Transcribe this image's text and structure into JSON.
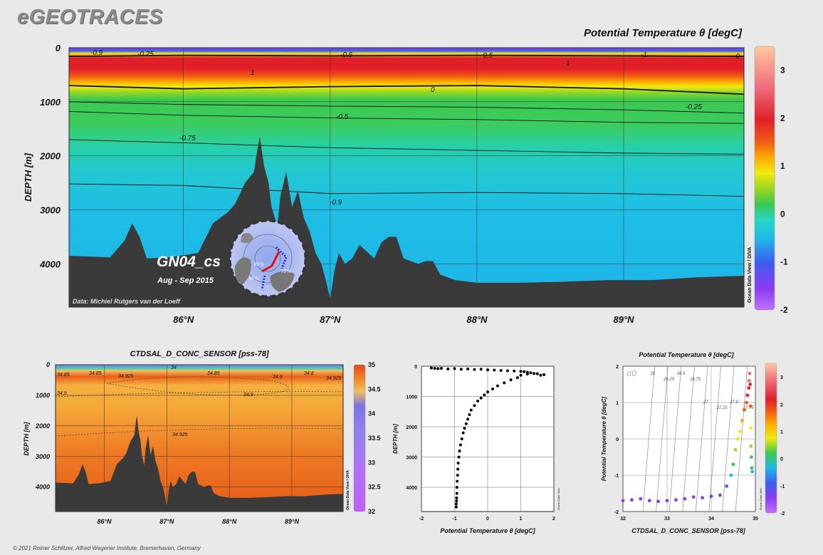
{
  "brand": "eGEOTRACES",
  "footer": "© 2021 Reiner Schlitzer, Alfred Wegener Institute, Bremerhaven, Germany",
  "main_section": {
    "title": "Potential Temperature θ [degC]",
    "ylabel": "DEPTH [m]",
    "section_name": "GN04_cs",
    "dates": "Aug - Sep 2015",
    "credit": "Data: Michiel Rutgers van der Loeff",
    "odv_label": "Ocean Data View / DIVA",
    "y_ticks": [
      "0",
      "1000",
      "2000",
      "3000",
      "4000"
    ],
    "x_ticks": [
      "86°N",
      "87°N",
      "88°N",
      "89°N"
    ],
    "colorbar_ticks": [
      "3",
      "2",
      "1",
      "0",
      "-1",
      "-2"
    ],
    "contour_labels": [
      "-0.9",
      "-0.25",
      "-0.5",
      "-0.5",
      "-1",
      "1",
      "1",
      "0",
      "0",
      "-0.25",
      "-0.5",
      "-0.75",
      "-0.9",
      "-0"
    ],
    "inset_labels": [
      "85°N",
      "80°N",
      "75°N"
    ]
  },
  "salinity_section": {
    "title": "CTDSAL_D_CONC_SENSOR [pss-78]",
    "ylabel": "DEPTH [m]",
    "odv_label": "Ocean Data View / DIVA",
    "y_ticks": [
      "0",
      "1000",
      "2000",
      "3000",
      "4000"
    ],
    "x_ticks": [
      "86°N",
      "87°N",
      "88°N",
      "89°N"
    ],
    "colorbar_ticks": [
      "35",
      "34.5",
      "34",
      "33.5",
      "33",
      "32.5",
      "32"
    ],
    "contour_labels": [
      "34.85",
      "34.85",
      "34.925",
      "34.85",
      "34.9",
      "34.8",
      "34.925",
      "34.9",
      "34.9",
      "34.925",
      "34"
    ]
  },
  "colors": {
    "background": "#e9e9e9",
    "bathymetry": "#3a3a3a",
    "theta_scale": [
      "#8a3cf0",
      "#3e5cf0",
      "#1fb8e8",
      "#27d7c8",
      "#3cc850",
      "#9ad820",
      "#f2ea10",
      "#ffa800",
      "#f05a14",
      "#e02028",
      "#f06a7a",
      "#ffc8a0"
    ],
    "salinity_scale": [
      "#c060ff",
      "#a070f0",
      "#7080f0",
      "#9080e0",
      "#c0a0c0",
      "#f0c060",
      "#f4b040",
      "#f08a28",
      "#e8601a",
      "#e24818"
    ]
  },
  "chart_data": [
    {
      "type": "heatmap",
      "title": "Potential Temperature θ [degC]",
      "xlabel": "",
      "ylabel": "DEPTH [m]",
      "xlim": [
        85.22,
        89.82
      ],
      "ylim": [
        4800,
        0
      ],
      "zlim": [
        -2,
        3.5
      ],
      "x_ticks": [
        86,
        87,
        88,
        89
      ],
      "y_ticks": [
        0,
        1000,
        2000,
        3000,
        4000
      ],
      "colorbar_ticks": [
        3,
        2,
        1,
        0,
        -1,
        -2
      ],
      "bathymetry": {
        "x": [
          85.22,
          85.5,
          85.6,
          85.65,
          85.7,
          85.75,
          85.9,
          86.1,
          86.2,
          86.3,
          86.35,
          86.42,
          86.48,
          86.5,
          86.52,
          86.55,
          86.58,
          86.6,
          86.64,
          86.66,
          86.7,
          86.74,
          86.78,
          86.82,
          86.86,
          86.9,
          86.94,
          86.97,
          87.0,
          87.03,
          87.06,
          87.1,
          87.15,
          87.2,
          87.3,
          87.35,
          87.4,
          87.45,
          87.5,
          87.6,
          87.65,
          87.7,
          87.75,
          87.85,
          88.0,
          88.3,
          88.6,
          88.9,
          89.2,
          89.5,
          89.82
        ],
        "y": [
          3850,
          3880,
          3560,
          3250,
          3500,
          3900,
          3880,
          3800,
          3250,
          3050,
          2900,
          2500,
          2300,
          1950,
          1650,
          2200,
          2500,
          2950,
          3300,
          2750,
          2300,
          2950,
          2650,
          3150,
          3400,
          3800,
          4000,
          4300,
          4650,
          4100,
          3800,
          4000,
          3900,
          3650,
          3900,
          3600,
          3500,
          3500,
          3900,
          4000,
          3950,
          3950,
          4200,
          4300,
          4350,
          4350,
          4330,
          4300,
          4300,
          4250,
          4220
        ]
      },
      "contours": [
        {
          "level": "1",
          "depth": [
            160,
            140,
            150,
            140,
            150,
            160
          ]
        },
        {
          "level": "0",
          "depth": [
            700,
            760,
            720,
            700,
            760,
            860
          ]
        },
        {
          "level": "-0.25",
          "depth": [
            1000,
            1050,
            1080,
            1100,
            1150,
            1210
          ]
        },
        {
          "level": "-0.5",
          "depth": [
            1180,
            1250,
            1300,
            1330,
            1380,
            1400
          ]
        },
        {
          "level": "-0.75",
          "depth": [
            1700,
            1760,
            1850,
            1900,
            1950,
            1970
          ]
        },
        {
          "level": "-0.9",
          "depth": [
            2520,
            2550,
            2700,
            2680,
            2700,
            2750
          ]
        }
      ],
      "contour_x": [
        85.22,
        86.0,
        87.0,
        88.0,
        89.0,
        89.82
      ]
    },
    {
      "type": "heatmap",
      "title": "CTDSAL_D_CONC_SENSOR [pss-78]",
      "xlabel": "",
      "ylabel": "DEPTH [m]",
      "xlim": [
        85.22,
        89.82
      ],
      "ylim": [
        4800,
        0
      ],
      "zlim": [
        32,
        35
      ],
      "x_ticks": [
        86,
        87,
        88,
        89
      ],
      "y_ticks": [
        0,
        1000,
        2000,
        3000,
        4000
      ],
      "colorbar_ticks": [
        35,
        34.5,
        34,
        33.5,
        33,
        32.5,
        32
      ]
    },
    {
      "type": "scatter",
      "xlabel": "Potential Temperature θ [degC]",
      "ylabel": "DEPTH [m]",
      "xlim": [
        -2,
        2
      ],
      "ylim": [
        4800,
        0
      ],
      "x_ticks": [
        -2,
        -1,
        0,
        1,
        2
      ],
      "y_ticks": [
        0,
        1000,
        2000,
        3000,
        4000
      ],
      "x": [
        -1.7,
        -1.6,
        -1.5,
        -1.4,
        -1.2,
        -1.0,
        -0.8,
        -0.6,
        -0.4,
        -0.2,
        0.0,
        0.2,
        0.4,
        0.6,
        0.8,
        1.0,
        1.1,
        1.2,
        1.3,
        1.4,
        1.5,
        1.6,
        1.7,
        1.2,
        1.0,
        0.9,
        0.7,
        0.5,
        0.3,
        0.15,
        0.0,
        -0.1,
        -0.2,
        -0.3,
        -0.4,
        -0.5,
        -0.55,
        -0.6,
        -0.65,
        -0.7,
        -0.74,
        -0.78,
        -0.82,
        -0.85,
        -0.87,
        -0.89,
        -0.9,
        -0.91,
        -0.92,
        -0.93,
        -0.93,
        -0.94,
        -0.94,
        -0.95,
        -0.95
      ],
      "y": [
        60,
        70,
        80,
        70,
        90,
        80,
        100,
        90,
        110,
        100,
        120,
        130,
        140,
        150,
        160,
        170,
        180,
        200,
        220,
        240,
        250,
        300,
        280,
        260,
        300,
        380,
        450,
        550,
        650,
        750,
        850,
        950,
        1050,
        1150,
        1300,
        1450,
        1600,
        1750,
        1900,
        2050,
        2200,
        2400,
        2600,
        2800,
        3000,
        3200,
        3400,
        3600,
        3800,
        4000,
        4200,
        4350,
        4450,
        4550,
        4650
      ]
    },
    {
      "type": "scatter",
      "title": "Potential Temperature θ [degC]",
      "xlabel": "CTDSAL_D_CONC_SENSOR [pss-78]",
      "ylabel": "Potential Temperature θ [degC]",
      "xlim": [
        32,
        35
      ],
      "ylim": [
        -2,
        2
      ],
      "x_ticks": [
        32,
        33,
        34,
        35
      ],
      "y_ticks": [
        2,
        1,
        0,
        -1,
        -2
      ],
      "colorbar_ticks": [
        3,
        2,
        1,
        0,
        -1,
        -2
      ],
      "isopycnal_labels": [
        "σ0",
        "26",
        "26.25",
        "26.5",
        "26.75",
        "27",
        "27.25",
        "27.5",
        "27.75"
      ],
      "x": [
        32.0,
        32.2,
        32.4,
        32.6,
        32.8,
        33.0,
        33.2,
        33.4,
        33.6,
        33.8,
        34.0,
        34.2,
        34.35,
        34.45,
        34.5,
        34.55,
        34.6,
        34.65,
        34.7,
        34.75,
        34.8,
        34.82,
        34.85,
        34.86,
        34.87,
        34.88,
        34.89,
        34.9,
        34.9,
        34.91,
        34.92,
        34.93
      ],
      "y": [
        -1.7,
        -1.68,
        -1.65,
        -1.7,
        -1.72,
        -1.7,
        -1.68,
        -1.65,
        -1.6,
        -1.62,
        -1.58,
        -1.55,
        -1.3,
        -1.0,
        -0.7,
        -0.3,
        0.0,
        0.2,
        0.5,
        0.8,
        1.0,
        1.2,
        1.4,
        1.6,
        1.8,
        1.5,
        0.9,
        0.3,
        -0.2,
        -0.5,
        -0.8,
        -0.9
      ]
    }
  ]
}
